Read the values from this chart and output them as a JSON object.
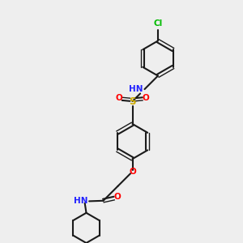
{
  "background_color": "#eeeeee",
  "bond_color": "#1a1a1a",
  "bond_lw": 1.5,
  "atom_colors": {
    "N": "#2020ff",
    "O": "#ff0000",
    "S": "#ccaa00",
    "Cl": "#00bb00",
    "H": "#5a8a8a"
  },
  "font_size": 7.5,
  "font_size_small": 6.5
}
